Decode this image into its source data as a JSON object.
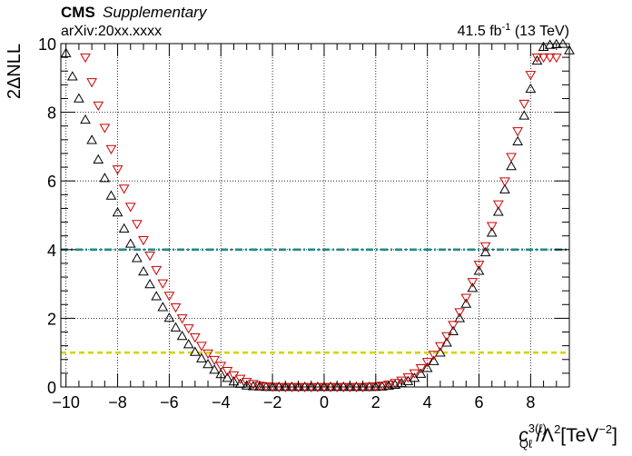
{
  "header": {
    "experiment": "CMS",
    "tag": "Supplementary",
    "reference": "arXiv:20xx.xxxx",
    "lumi_value": "41.5 fb",
    "lumi_exp": "-1",
    "energy": "(13 TeV)"
  },
  "chart_data": {
    "type": "scatter",
    "xlim": [
      -10.2,
      9.5
    ],
    "ylim": [
      0,
      10
    ],
    "grid": true,
    "ylabel": "2ΔNLL",
    "xlabel": {
      "symbol": "c",
      "superscript": "3(ℓ)",
      "subscript": "Qℓ",
      "mid": "/Λ",
      "mid_sup": "2",
      "unit": "[TeV",
      "unit_sup": "−2",
      "unit_close": "]"
    },
    "xticks": [
      -10,
      -8,
      -6,
      -4,
      -2,
      0,
      2,
      4,
      6,
      8
    ],
    "xtick_labels": [
      "−10",
      "−8",
      "−6",
      "−4",
      "−2",
      "0",
      "2",
      "4",
      "6",
      "8"
    ],
    "yticks": [
      0,
      2,
      4,
      6,
      8,
      10
    ],
    "ytick_labels": [
      "0",
      "2",
      "4",
      "6",
      "8",
      "10"
    ],
    "reference_lines": [
      {
        "y": 4,
        "color": "#1f8a8a",
        "style": "dash-dot"
      },
      {
        "y": 1,
        "color": "#d4d400",
        "style": "dashed"
      }
    ],
    "series": [
      {
        "marker": "triangle-up",
        "color": "#000000",
        "x": [
          -10.0,
          -9.75,
          -9.5,
          -9.25,
          -9.0,
          -8.75,
          -8.5,
          -8.25,
          -8.0,
          -7.75,
          -7.5,
          -7.25,
          -7.0,
          -6.75,
          -6.5,
          -6.25,
          -6.0,
          -5.75,
          -5.5,
          -5.25,
          -5.0,
          -4.75,
          -4.5,
          -4.25,
          -4.0,
          -3.75,
          -3.5,
          -3.25,
          -3.0,
          -2.75,
          -2.5,
          -2.25,
          -2.0,
          -1.75,
          -1.5,
          -1.25,
          -1.0,
          -0.75,
          -0.5,
          -0.25,
          0.0,
          0.25,
          0.5,
          0.75,
          1.0,
          1.25,
          1.5,
          1.75,
          2.0,
          2.25,
          2.5,
          2.75,
          3.0,
          3.25,
          3.5,
          3.75,
          4.0,
          4.25,
          4.5,
          4.75,
          5.0,
          5.25,
          5.5,
          5.75,
          6.0,
          6.25,
          6.5,
          6.75,
          7.0,
          7.25,
          7.5,
          7.75,
          8.0,
          8.25,
          8.5,
          8.75,
          9.0,
          9.25,
          9.5
        ],
        "y": [
          9.72,
          9.04,
          8.4,
          7.78,
          7.19,
          6.62,
          6.08,
          5.57,
          5.08,
          4.61,
          4.17,
          3.75,
          3.36,
          2.99,
          2.64,
          2.32,
          2.01,
          1.73,
          1.48,
          1.24,
          1.02,
          0.83,
          0.66,
          0.5,
          0.37,
          0.26,
          0.16,
          0.09,
          0.04,
          0.02,
          0.01,
          0.0,
          0.0,
          0.0,
          0.0,
          0.0,
          0.0,
          0.0,
          0.0,
          0.0,
          0.0,
          0.0,
          0.0,
          0.0,
          0.0,
          0.0,
          0.0,
          0.0,
          0.0,
          0.01,
          0.03,
          0.06,
          0.11,
          0.17,
          0.26,
          0.38,
          0.55,
          0.75,
          1.0,
          1.29,
          1.62,
          2.0,
          2.42,
          2.88,
          3.38,
          3.92,
          4.49,
          5.1,
          5.75,
          6.43,
          7.15,
          7.9,
          8.68,
          9.5,
          9.9,
          9.96,
          9.98,
          9.99,
          9.8
        ]
      },
      {
        "marker": "triangle-down",
        "color": "#cc0000",
        "x": [
          -9.25,
          -9.0,
          -8.75,
          -8.5,
          -8.25,
          -8.0,
          -7.75,
          -7.5,
          -7.25,
          -7.0,
          -6.75,
          -6.5,
          -6.25,
          -6.0,
          -5.75,
          -5.5,
          -5.25,
          -5.0,
          -4.75,
          -4.5,
          -4.25,
          -4.0,
          -3.75,
          -3.5,
          -3.25,
          -3.0,
          -2.75,
          -2.5,
          -2.25,
          -2.0,
          -1.75,
          -1.5,
          -1.25,
          -1.0,
          -0.75,
          -0.5,
          -0.25,
          0.0,
          0.25,
          0.5,
          0.75,
          1.0,
          1.25,
          1.5,
          1.75,
          2.0,
          2.25,
          2.5,
          2.75,
          3.0,
          3.25,
          3.5,
          3.75,
          4.0,
          4.25,
          4.5,
          4.75,
          5.0,
          5.25,
          5.5,
          5.75,
          6.0,
          6.25,
          6.5,
          6.75,
          7.0,
          7.25,
          7.5,
          7.75,
          8.0,
          8.25,
          8.5,
          8.75,
          9.0
        ],
        "y": [
          9.6,
          8.88,
          8.2,
          7.55,
          6.93,
          6.34,
          5.78,
          5.25,
          4.75,
          4.28,
          3.83,
          3.41,
          3.02,
          2.66,
          2.32,
          2.0,
          1.71,
          1.45,
          1.2,
          0.98,
          0.79,
          0.62,
          0.47,
          0.34,
          0.24,
          0.15,
          0.09,
          0.04,
          0.02,
          0.01,
          0.0,
          0.0,
          0.0,
          0.0,
          0.0,
          0.0,
          0.0,
          0.0,
          0.0,
          0.0,
          0.0,
          0.0,
          0.0,
          0.0,
          0.01,
          0.02,
          0.04,
          0.07,
          0.12,
          0.19,
          0.28,
          0.4,
          0.55,
          0.73,
          0.94,
          1.19,
          1.48,
          1.81,
          2.18,
          2.6,
          3.06,
          3.56,
          4.1,
          4.69,
          5.32,
          5.99,
          6.7,
          7.45,
          8.25,
          9.09,
          9.6,
          9.6,
          9.6,
          9.6
        ]
      }
    ]
  }
}
